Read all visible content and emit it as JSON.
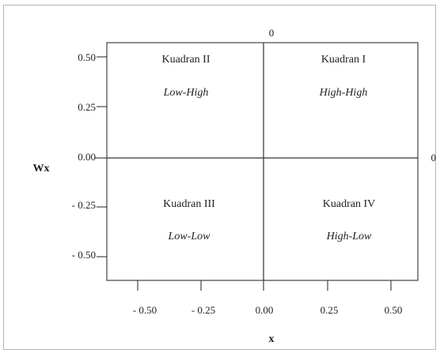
{
  "diagram": {
    "y_axis_title": "Wx",
    "x_axis_title": "x",
    "top_zero_label": "0",
    "right_zero_label": "0",
    "y_ticks": [
      "0.50",
      "0.25",
      "0.00",
      "- 0.25",
      "- 0.50"
    ],
    "x_ticks": [
      "- 0.50",
      "- 0.25",
      "0.00",
      "0.25",
      "0.50"
    ],
    "quadrants": [
      {
        "id": "I",
        "title": "Kuadran I",
        "subtitle": "High-High"
      },
      {
        "id": "II",
        "title": "Kuadran II",
        "subtitle": "Low-High"
      },
      {
        "id": "III",
        "title": "Kuadran III",
        "subtitle": "Low-Low"
      },
      {
        "id": "IV",
        "title": "Kuadran IV",
        "subtitle": "High-Low"
      }
    ]
  }
}
